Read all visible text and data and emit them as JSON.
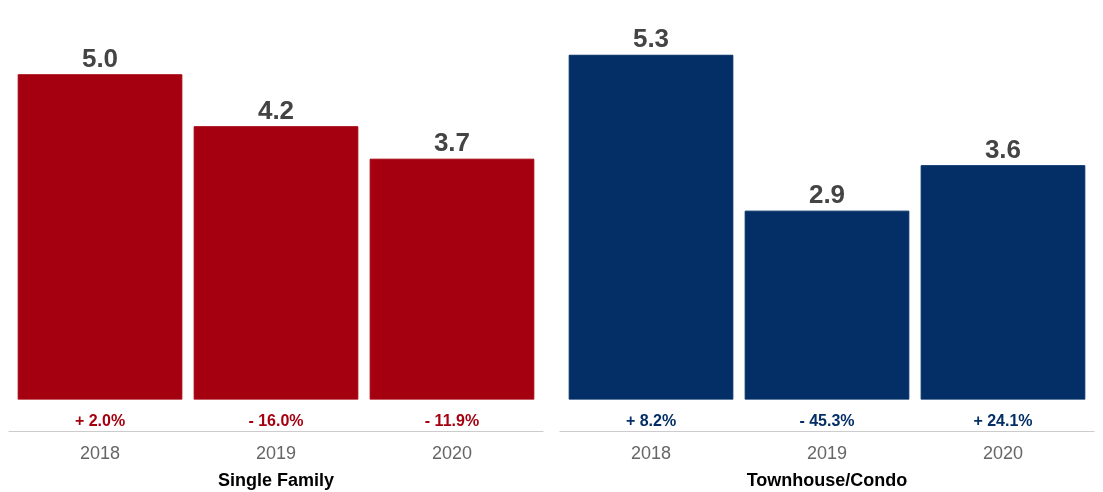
{
  "chart_data": [
    {
      "type": "bar",
      "categories": [
        "2018",
        "2019",
        "2020"
      ],
      "values": [
        5.0,
        4.2,
        3.7
      ],
      "value_labels": [
        "5.0",
        "4.2",
        "3.7"
      ],
      "color": "#a5000f",
      "tick_labels": "x",
      "grid": false,
      "xlabel": "Single Family",
      "annotations": [
        "+ 2.0%",
        "- 16.0%",
        "- 11.9%"
      ]
    },
    {
      "type": "bar",
      "categories": [
        "2018",
        "2019",
        "2020"
      ],
      "values": [
        5.3,
        2.9,
        3.6
      ],
      "value_labels": [
        "5.3",
        "2.9",
        "3.6"
      ],
      "color": "#032f66",
      "tick_labels": "x",
      "grid": false,
      "xlabel": "Townhouse/Condo",
      "annotations": [
        "+ 8.2%",
        "- 45.3%",
        "+ 24.1%"
      ]
    }
  ]
}
